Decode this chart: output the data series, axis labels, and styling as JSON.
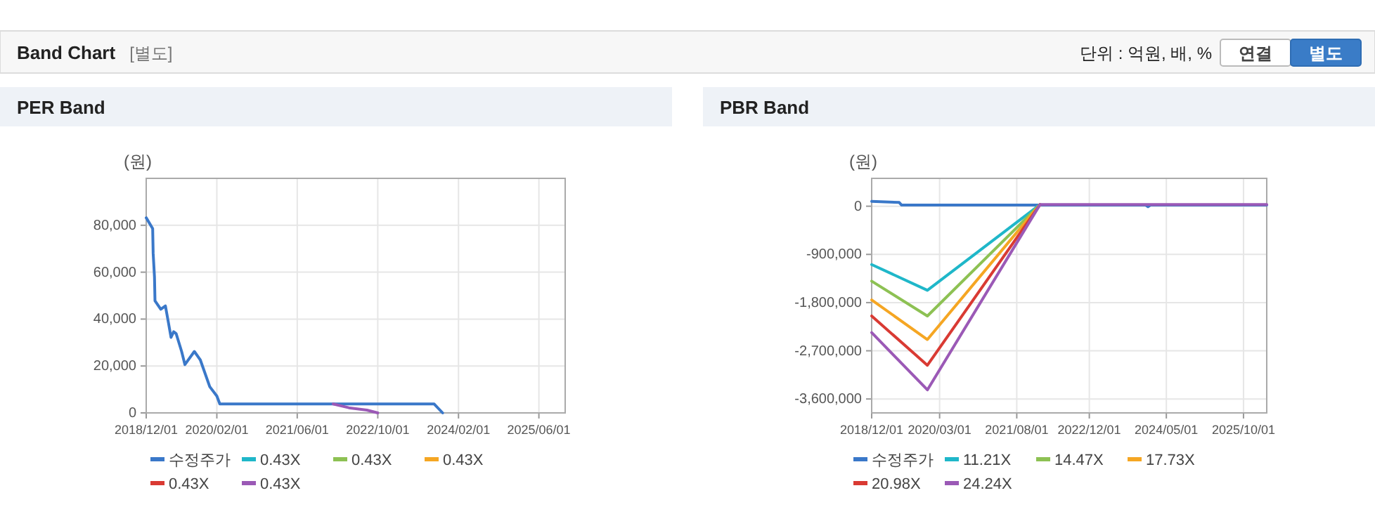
{
  "chart_data": [
    {
      "type": "other",
      "title": "Band Chart",
      "annotations": [
        "[별도]",
        "단위 : 억원, 배, %",
        "연결",
        "별도"
      ]
    },
    {
      "type": "line",
      "title": "PER Band",
      "ylabel": "(원)",
      "legend": "bottom",
      "grid": true,
      "xlim": [
        "2018-12-01",
        "2025-11-07"
      ],
      "xticks": [
        {
          "value": "2018-12-01",
          "label": "2018/12/01"
        },
        {
          "value": "2020-02-01",
          "label": "2020/02/01"
        },
        {
          "value": "2021-06-01",
          "label": "2021/06/01"
        },
        {
          "value": "2022-10-01",
          "label": "2022/10/01"
        },
        {
          "value": "2024-02-01",
          "label": "2024/02/01"
        },
        {
          "value": "2025-06-01",
          "label": "2025/06/01"
        }
      ],
      "ylim": [
        0,
        100000
      ],
      "yticks": [
        {
          "value": 0,
          "label": "0"
        },
        {
          "value": 20000,
          "label": "20,000"
        },
        {
          "value": 40000,
          "label": "40,000"
        },
        {
          "value": 60000,
          "label": "60,000"
        },
        {
          "value": 80000,
          "label": "80,000"
        }
      ],
      "series": [
        {
          "name": "수정주가",
          "color": "#3a78c9",
          "x": [
            "2018-12-01",
            "2019-01-09",
            "2019-01-12",
            "2019-01-20",
            "2019-01-23",
            "2019-02-27",
            "2019-03-27",
            "2019-04-10",
            "2019-04-30",
            "2019-05-16",
            "2019-05-31",
            "2019-07-03",
            "2019-07-23",
            "2019-09-18",
            "2019-10-24",
            "2019-12-20",
            "2020-02-01",
            "2020-02-19",
            "2023-09-07",
            "2023-10-28"
          ],
          "values": [
            83200,
            78600,
            68000,
            58000,
            47800,
            44200,
            45600,
            40200,
            32200,
            34600,
            33800,
            26200,
            20600,
            26200,
            22600,
            11200,
            7200,
            3800,
            3800,
            0
          ]
        },
        {
          "name": "0.43X",
          "color": "#1fb7c9"
        },
        {
          "name": "0.43X",
          "color": "#8dc153"
        },
        {
          "name": "0.43X",
          "color": "#f5a623"
        },
        {
          "name": "0.43X",
          "color": "#d93a33"
        },
        {
          "name": "0.43X",
          "color": "#9b59b6",
          "x": [
            "2022-01-04",
            "2022-04-09",
            "2022-07-27",
            "2022-10-01"
          ],
          "values": [
            3800,
            2200,
            1200,
            0
          ]
        }
      ]
    },
    {
      "type": "line",
      "title": "PBR Band",
      "ylabel": "(원)",
      "legend": "bottom",
      "grid": true,
      "xlim": [
        "2018-12-01",
        "2026-03-06"
      ],
      "xticks": [
        {
          "value": "2018-12-01",
          "label": "2018/12/01"
        },
        {
          "value": "2020-03-01",
          "label": "2020/03/01"
        },
        {
          "value": "2021-08-01",
          "label": "2021/08/01"
        },
        {
          "value": "2022-12-01",
          "label": "2022/12/01"
        },
        {
          "value": "2024-05-01",
          "label": "2024/05/01"
        },
        {
          "value": "2025-10-01",
          "label": "2025/10/01"
        }
      ],
      "ylim": [
        -3860000,
        520000
      ],
      "yticks": [
        {
          "value": 0,
          "label": "0"
        },
        {
          "value": -900000,
          "label": "-900,000"
        },
        {
          "value": -1800000,
          "label": "-1,800,000"
        },
        {
          "value": -2700000,
          "label": "-2,700,000"
        },
        {
          "value": -3600000,
          "label": "-3,600,000"
        }
      ],
      "series": [
        {
          "name": "수정주가",
          "color": "#3a78c9",
          "x": [
            "2018-12-01",
            "2019-06-04",
            "2019-06-20",
            "2022-01-04",
            "2023-12-15",
            "2023-12-30",
            "2024-01-15",
            "2026-03-06"
          ],
          "values": [
            90000,
            70000,
            20000,
            20000,
            20000,
            -10000,
            20000,
            20000
          ]
        },
        {
          "name": "11.21X",
          "color": "#1fb7c9",
          "x": [
            "2018-12-01",
            "2019-12-10",
            "2022-01-04"
          ],
          "values": [
            -1090000,
            -1570000,
            30000
          ]
        },
        {
          "name": "14.47X",
          "color": "#8dc153",
          "x": [
            "2018-12-01",
            "2019-12-10",
            "2022-01-04"
          ],
          "values": [
            -1400000,
            -2050000,
            30000
          ]
        },
        {
          "name": "17.73X",
          "color": "#f5a623",
          "x": [
            "2018-12-01",
            "2019-12-10",
            "2022-01-04"
          ],
          "values": [
            -1750000,
            -2490000,
            30000
          ]
        },
        {
          "name": "20.98X",
          "color": "#d93a33",
          "x": [
            "2018-12-01",
            "2019-12-10",
            "2022-01-04"
          ],
          "values": [
            -2050000,
            -2970000,
            30000
          ]
        },
        {
          "name": "24.24X",
          "color": "#9b59b6",
          "x": [
            "2018-12-01",
            "2019-12-10",
            "2022-01-04",
            "2026-03-06"
          ],
          "values": [
            -2360000,
            -3430000,
            30000,
            30000
          ]
        }
      ]
    }
  ]
}
